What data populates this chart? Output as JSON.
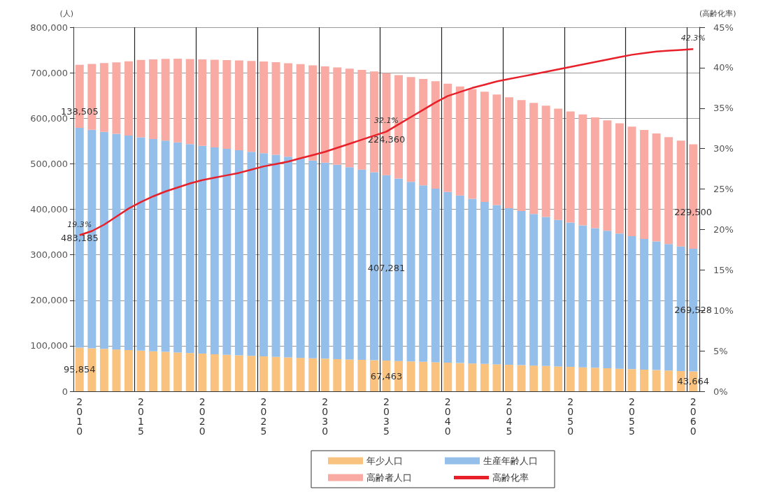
{
  "chart_data": {
    "type": "bar",
    "stacked": true,
    "ylabel": "(人)",
    "y2label": "(高齢化率)",
    "categories": [
      "2010",
      null,
      null,
      null,
      null,
      "2015",
      null,
      null,
      null,
      null,
      "2020",
      null,
      null,
      null,
      null,
      "2025",
      null,
      null,
      null,
      null,
      "2030",
      null,
      null,
      null,
      null,
      "2035",
      null,
      null,
      null,
      null,
      "2040",
      null,
      null,
      null,
      null,
      "2045",
      null,
      null,
      null,
      null,
      "2050",
      null,
      null,
      null,
      null,
      "2055",
      null,
      null,
      null,
      null,
      "2060"
    ],
    "series": [
      {
        "name": "年少人口",
        "color": "#f9c27e",
        "values": [
          95854,
          94500,
          93200,
          91900,
          90600,
          89300,
          88000,
          86700,
          85400,
          84100,
          82800,
          81500,
          80300,
          79100,
          77900,
          76700,
          75600,
          74500,
          73500,
          72500,
          71600,
          70800,
          70000,
          69200,
          68300,
          67463,
          66500,
          65600,
          64700,
          63800,
          62900,
          62000,
          61100,
          60200,
          59300,
          58400,
          57500,
          56600,
          55700,
          54700,
          53700,
          52700,
          51700,
          50700,
          49700,
          48700,
          47700,
          46700,
          45700,
          44700,
          43664
        ],
        "value_labels": [
          "95,854",
          null,
          null,
          null,
          null,
          null,
          null,
          null,
          null,
          null,
          null,
          null,
          null,
          null,
          null,
          null,
          null,
          null,
          null,
          null,
          null,
          null,
          null,
          null,
          null,
          "67,463",
          null,
          null,
          null,
          null,
          null,
          null,
          null,
          null,
          null,
          null,
          null,
          null,
          null,
          null,
          null,
          null,
          null,
          null,
          null,
          null,
          null,
          null,
          null,
          null,
          "43,664"
        ]
      },
      {
        "name": "生産年齢人口",
        "color": "#95bfeb",
        "values": [
          483185,
          480000,
          477000,
          474000,
          471500,
          469000,
          466500,
          464000,
          461500,
          459000,
          456500,
          454500,
          452500,
          450500,
          448500,
          446500,
          444000,
          441000,
          438000,
          434500,
          431000,
          427000,
          422500,
          418000,
          413000,
          407281,
          401000,
          394500,
          388000,
          381500,
          375000,
          368500,
          362000,
          356000,
          350000,
          344000,
          338500,
          333000,
          327500,
          322000,
          317000,
          312000,
          307000,
          302000,
          297000,
          292000,
          287000,
          282500,
          278000,
          273500,
          269528
        ],
        "value_labels": [
          "483,185",
          null,
          null,
          null,
          null,
          null,
          null,
          null,
          null,
          null,
          null,
          null,
          null,
          null,
          null,
          null,
          null,
          null,
          null,
          null,
          null,
          null,
          null,
          null,
          null,
          "407,281",
          null,
          null,
          null,
          null,
          null,
          null,
          null,
          null,
          null,
          null,
          null,
          null,
          null,
          null,
          null,
          null,
          null,
          null,
          null,
          null,
          null,
          null,
          null,
          null,
          "269,528"
        ]
      },
      {
        "name": "高齢者人口",
        "color": "#f9aaa2",
        "values": [
          138505,
          145000,
          151000,
          157000,
          163000,
          170000,
          175000,
          180000,
          184000,
          187000,
          190000,
          192500,
          195000,
          197500,
          199500,
          201500,
          203500,
          205500,
          207500,
          209500,
          211500,
          214000,
          216500,
          219000,
          221500,
          224360,
          227500,
          230500,
          233500,
          236000,
          238000,
          239500,
          241000,
          242000,
          243000,
          243500,
          244000,
          244200,
          244300,
          244300,
          244200,
          243800,
          243300,
          242700,
          242000,
          241000,
          239500,
          237500,
          235000,
          232500,
          229500
        ],
        "value_labels": [
          "138,505",
          null,
          null,
          null,
          null,
          null,
          null,
          null,
          null,
          null,
          null,
          null,
          null,
          null,
          null,
          null,
          null,
          null,
          null,
          null,
          null,
          null,
          null,
          null,
          null,
          "224,360",
          null,
          null,
          null,
          null,
          null,
          null,
          null,
          null,
          null,
          null,
          null,
          null,
          null,
          null,
          null,
          null,
          null,
          null,
          null,
          null,
          null,
          null,
          null,
          null,
          "229,500"
        ]
      },
      {
        "name": "高齢化率",
        "type": "line",
        "axis": "y2",
        "color": "#e8202a",
        "values": [
          19.3,
          19.8,
          20.6,
          21.6,
          22.6,
          23.4,
          24.1,
          24.7,
          25.2,
          25.7,
          26.1,
          26.4,
          26.7,
          27.0,
          27.4,
          27.8,
          28.1,
          28.4,
          28.8,
          29.2,
          29.6,
          30.1,
          30.6,
          31.1,
          31.6,
          32.1,
          33.0,
          33.9,
          34.8,
          35.7,
          36.5,
          37.0,
          37.5,
          37.9,
          38.3,
          38.6,
          38.9,
          39.2,
          39.5,
          39.8,
          40.1,
          40.4,
          40.7,
          41.0,
          41.3,
          41.6,
          41.8,
          42.0,
          42.1,
          42.2,
          42.3
        ],
        "value_labels": [
          "19.3%",
          null,
          null,
          null,
          null,
          null,
          null,
          null,
          null,
          null,
          null,
          null,
          null,
          null,
          null,
          null,
          null,
          null,
          null,
          null,
          null,
          null,
          null,
          null,
          null,
          "32.1%",
          null,
          null,
          null,
          null,
          null,
          null,
          null,
          null,
          null,
          null,
          null,
          null,
          null,
          null,
          null,
          null,
          null,
          null,
          null,
          null,
          null,
          null,
          null,
          null,
          "42.3%"
        ]
      }
    ],
    "ylim": [
      0,
      800000
    ],
    "yticks": [
      {
        "value": 0,
        "label": "0"
      },
      {
        "value": 100000,
        "label": "100,000"
      },
      {
        "value": 200000,
        "label": "200,000"
      },
      {
        "value": 300000,
        "label": "300,000"
      },
      {
        "value": 400000,
        "label": "400,000"
      },
      {
        "value": 500000,
        "label": "500,000"
      },
      {
        "value": 600000,
        "label": "600,000"
      },
      {
        "value": 700000,
        "label": "700,000"
      },
      {
        "value": 800000,
        "label": "800,000"
      }
    ],
    "y2lim": [
      0,
      45
    ],
    "y2ticks": [
      {
        "value": 0,
        "label": "0%"
      },
      {
        "value": 5,
        "label": "5%"
      },
      {
        "value": 10,
        "label": "10%"
      },
      {
        "value": 15,
        "label": "15%"
      },
      {
        "value": 20,
        "label": "20%"
      },
      {
        "value": 25,
        "label": "25%"
      },
      {
        "value": 30,
        "label": "30%"
      },
      {
        "value": 35,
        "label": "35%"
      },
      {
        "value": 40,
        "label": "40%"
      },
      {
        "value": 45,
        "label": "45%"
      }
    ],
    "grid": true,
    "legend": "bottom",
    "marker": "none",
    "line_style": "solid"
  }
}
